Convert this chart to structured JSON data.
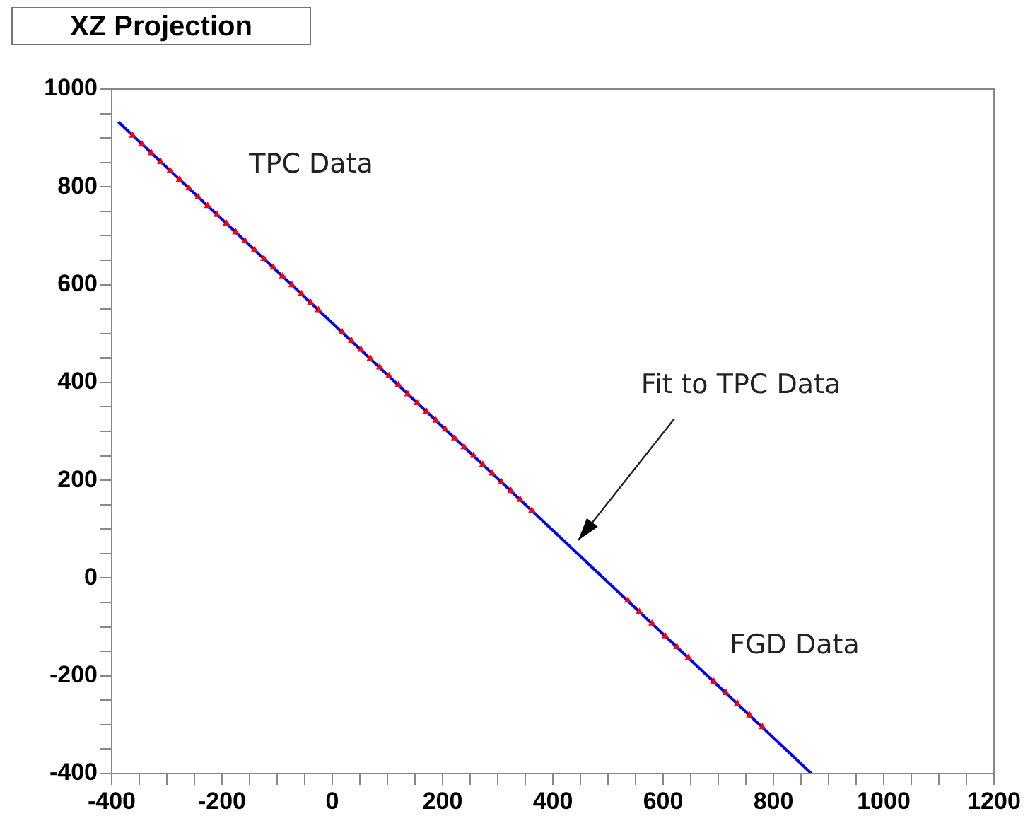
{
  "chart_data": {
    "type": "scatter",
    "title": "XZ Projection",
    "series": [
      {
        "type": "scatter",
        "color": "#ff0000",
        "x": [
          -362,
          -345,
          -328,
          -311,
          -294,
          -277,
          -260,
          -243,
          -226,
          -209,
          -192,
          -175,
          -158,
          -141,
          -124,
          -107,
          -90,
          -73,
          -56,
          -39,
          -25,
          18,
          35,
          52,
          69,
          86,
          103,
          120,
          137,
          154,
          171,
          188,
          205,
          222,
          239,
          256,
          273,
          290,
          307,
          324,
          341,
          362
        ],
        "values": [
          905,
          887,
          869,
          851,
          833,
          815,
          797,
          779,
          761,
          743,
          725,
          707,
          689,
          671,
          653,
          635,
          617,
          599,
          581,
          563,
          548,
          503,
          485,
          467,
          449,
          431,
          413,
          395,
          376,
          358,
          340,
          322,
          304,
          286,
          268,
          250,
          232,
          214,
          196,
          178,
          160,
          138
        ]
      },
      {
        "type": "scatter",
        "color": "#ff0000",
        "x": [
          536,
          557,
          580,
          604,
          625,
          646,
          692,
          714,
          735,
          757,
          780
        ],
        "values": [
          -46,
          -69,
          -93,
          -119,
          -141,
          -163,
          -212,
          -235,
          -257,
          -281,
          -305
        ]
      },
      {
        "type": "line",
        "color": "#0000ff",
        "marker": "none",
        "x": [
          -388,
          869
        ],
        "values": [
          933,
          -400
        ]
      }
    ],
    "marker": "triangle",
    "xlim": [
      -400,
      1200
    ],
    "ylim": [
      -400,
      1000
    ],
    "xticks": [
      -400,
      {
        "value": -350,
        "label": null
      },
      {
        "value": -300,
        "label": null
      },
      {
        "value": -250,
        "label": null
      },
      -200,
      {
        "value": -150,
        "label": null
      },
      {
        "value": -100,
        "label": null
      },
      {
        "value": -50,
        "label": null
      },
      0,
      {
        "value": 50,
        "label": null
      },
      {
        "value": 100,
        "label": null
      },
      {
        "value": 150,
        "label": null
      },
      200,
      {
        "value": 250,
        "label": null
      },
      {
        "value": 300,
        "label": null
      },
      {
        "value": 350,
        "label": null
      },
      400,
      {
        "value": 450,
        "label": null
      },
      {
        "value": 500,
        "label": null
      },
      {
        "value": 550,
        "label": null
      },
      600,
      {
        "value": 650,
        "label": null
      },
      {
        "value": 700,
        "label": null
      },
      {
        "value": 750,
        "label": null
      },
      800,
      {
        "value": 850,
        "label": null
      },
      {
        "value": 900,
        "label": null
      },
      {
        "value": 950,
        "label": null
      },
      1000,
      {
        "value": 1050,
        "label": null
      },
      {
        "value": 1100,
        "label": null
      },
      {
        "value": 1150,
        "label": null
      },
      1200
    ],
    "yticks": [
      -400,
      {
        "value": -350,
        "label": null
      },
      {
        "value": -300,
        "label": null
      },
      {
        "value": -250,
        "label": null
      },
      -200,
      {
        "value": -150,
        "label": null
      },
      {
        "value": -100,
        "label": null
      },
      {
        "value": -50,
        "label": null
      },
      0,
      {
        "value": 50,
        "label": null
      },
      {
        "value": 100,
        "label": null
      },
      {
        "value": 150,
        "label": null
      },
      200,
      {
        "value": 250,
        "label": null
      },
      {
        "value": 300,
        "label": null
      },
      {
        "value": 350,
        "label": null
      },
      400,
      {
        "value": 450,
        "label": null
      },
      {
        "value": 500,
        "label": null
      },
      {
        "value": 550,
        "label": null
      },
      600,
      {
        "value": 650,
        "label": null
      },
      {
        "value": 700,
        "label": null
      },
      {
        "value": 750,
        "label": null
      },
      800,
      {
        "value": 850,
        "label": null
      },
      {
        "value": 900,
        "label": null
      },
      {
        "value": 950,
        "label": null
      },
      1000
    ],
    "grid": false,
    "legend": false,
    "annotations": [
      "TPC Data",
      "Fit to TPC Data",
      "FGD Data"
    ]
  }
}
